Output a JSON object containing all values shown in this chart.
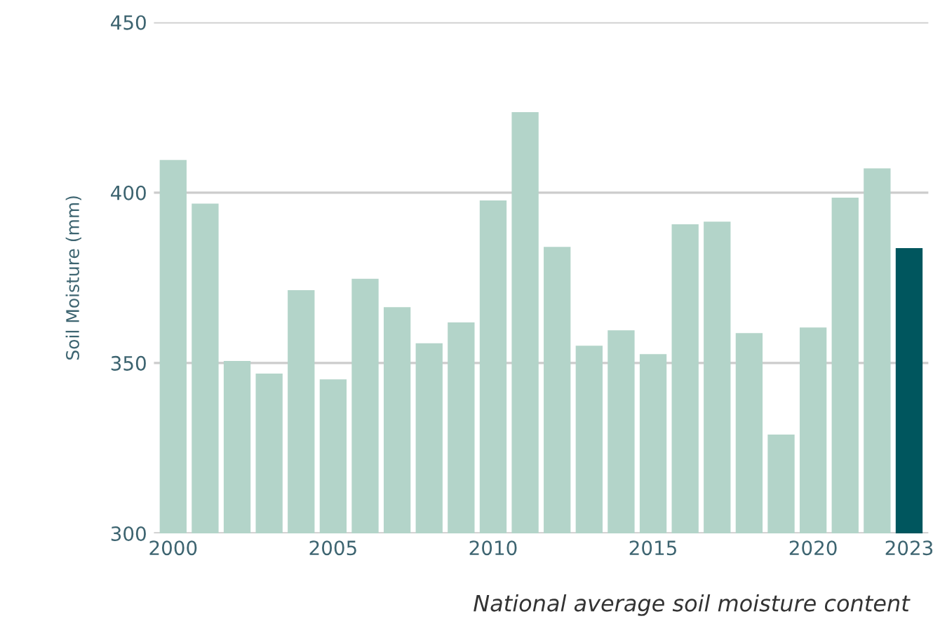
{
  "chart_data": {
    "type": "bar",
    "ylabel": "Soil Moisture (mm)",
    "categories": [
      "2000",
      null,
      null,
      null,
      null,
      "2005",
      null,
      null,
      null,
      null,
      "2010",
      null,
      null,
      null,
      null,
      "2015",
      null,
      null,
      null,
      null,
      "2020",
      null,
      null,
      "2023"
    ],
    "values": [
      409.6,
      396.8,
      350.6,
      346.9,
      371.4,
      345.2,
      374.7,
      366.4,
      355.8,
      361.9,
      397.7,
      423.6,
      384.1,
      355.1,
      359.6,
      352.6,
      390.7,
      391.5,
      358.8,
      329.0,
      360.4,
      398.5,
      407.1,
      383.7
    ],
    "colors": [
      "#b3d4c9",
      "#b3d4c9",
      "#b3d4c9",
      "#b3d4c9",
      "#b3d4c9",
      "#b3d4c9",
      "#b3d4c9",
      "#b3d4c9",
      "#b3d4c9",
      "#b3d4c9",
      "#b3d4c9",
      "#b3d4c9",
      "#b3d4c9",
      "#b3d4c9",
      "#b3d4c9",
      "#b3d4c9",
      "#b3d4c9",
      "#b3d4c9",
      "#b3d4c9",
      "#b3d4c9",
      "#b3d4c9",
      "#b3d4c9",
      "#b3d4c9",
      "#00565e"
    ],
    "ylim": [
      300,
      450
    ],
    "yticks": [
      300,
      350,
      400,
      450
    ],
    "grid": "y",
    "annotations": [
      "National average soil moisture content"
    ]
  }
}
